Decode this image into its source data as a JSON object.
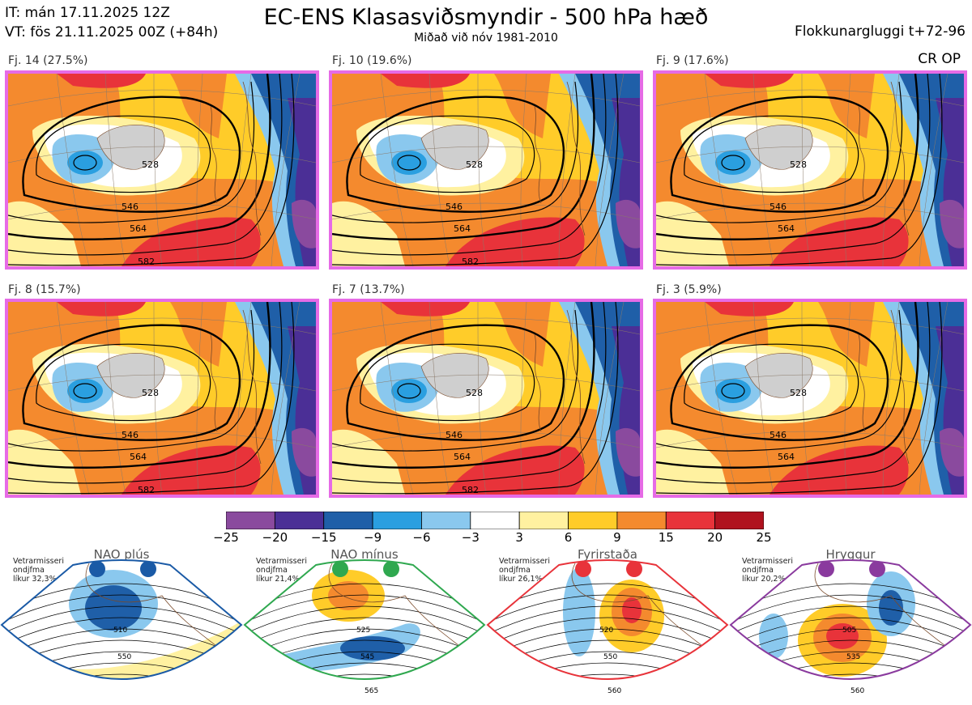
{
  "header": {
    "it": "IT: mán 17.11.2025 12Z",
    "vt": "VT: fös 21.11.2025 00Z  (+84h)",
    "title": "EC-ENS Klasasviðsmyndir - 500 hPa hæð",
    "subtitle": "Miðað við nóv 1981-2010",
    "window": "Flokkunargluggi t+72-96",
    "crop": "CR OP"
  },
  "clusters": [
    {
      "label": "Fj. 14 (27.5%)",
      "contours": [
        "528",
        "546",
        "564",
        "582"
      ],
      "border_color": "#e66be6"
    },
    {
      "label": "Fj. 10 (19.6%)",
      "contours": [
        "528",
        "546",
        "564",
        "582"
      ],
      "border_color": "#e66be6"
    },
    {
      "label": "Fj. 9 (17.6%)",
      "contours": [
        "528",
        "546",
        "564"
      ],
      "border_color": "#e66be6"
    },
    {
      "label": "Fj. 8 (15.7%)",
      "contours": [
        "528",
        "546",
        "564",
        "582"
      ],
      "border_color": "#e66be6"
    },
    {
      "label": "Fj. 7 (13.7%)",
      "contours": [
        "528",
        "546",
        "564",
        "582"
      ],
      "border_color": "#e66be6"
    },
    {
      "label": "Fj. 3 (5.9%)",
      "contours": [
        "528",
        "546",
        "564"
      ],
      "border_color": "#e66be6"
    }
  ],
  "colorbar": {
    "ticks": [
      "−25",
      "−20",
      "−15",
      "−9",
      "−6",
      "−3",
      "3",
      "6",
      "9",
      "15",
      "20",
      "25"
    ],
    "colors": [
      "#8a4a9e",
      "#4b2f96",
      "#1f5fa8",
      "#2a9fe0",
      "#8ac8ee",
      "#ffffff",
      "#fff1a0",
      "#ffcc29",
      "#f48a2e",
      "#e8333a",
      "#b0121e"
    ]
  },
  "regimes": [
    {
      "name": "NAO plús",
      "note": [
        "Vetrarmisseri",
        "ondjfma",
        "líkur 32,3%"
      ],
      "color": "#1a5aa6",
      "contours": [
        "510",
        "550"
      ]
    },
    {
      "name": "NAO mínus",
      "note": [
        "Vetrarmisseri",
        "ondjfma",
        "líkur 21,4%"
      ],
      "color": "#2fa84f",
      "contours": [
        "525",
        "545",
        "565"
      ]
    },
    {
      "name": "Fyrirstaða",
      "note": [
        "Vetrarmisseri",
        "ondjfma",
        "líkur 26,1%"
      ],
      "color": "#e8333a",
      "contours": [
        "520",
        "550",
        "560"
      ]
    },
    {
      "name": "Hryggur",
      "note": [
        "Vetrarmisseri",
        "ondjfma",
        "líkur 20,2%"
      ],
      "color": "#8a3a9e",
      "contours": [
        "505",
        "535",
        "560"
      ]
    }
  ]
}
